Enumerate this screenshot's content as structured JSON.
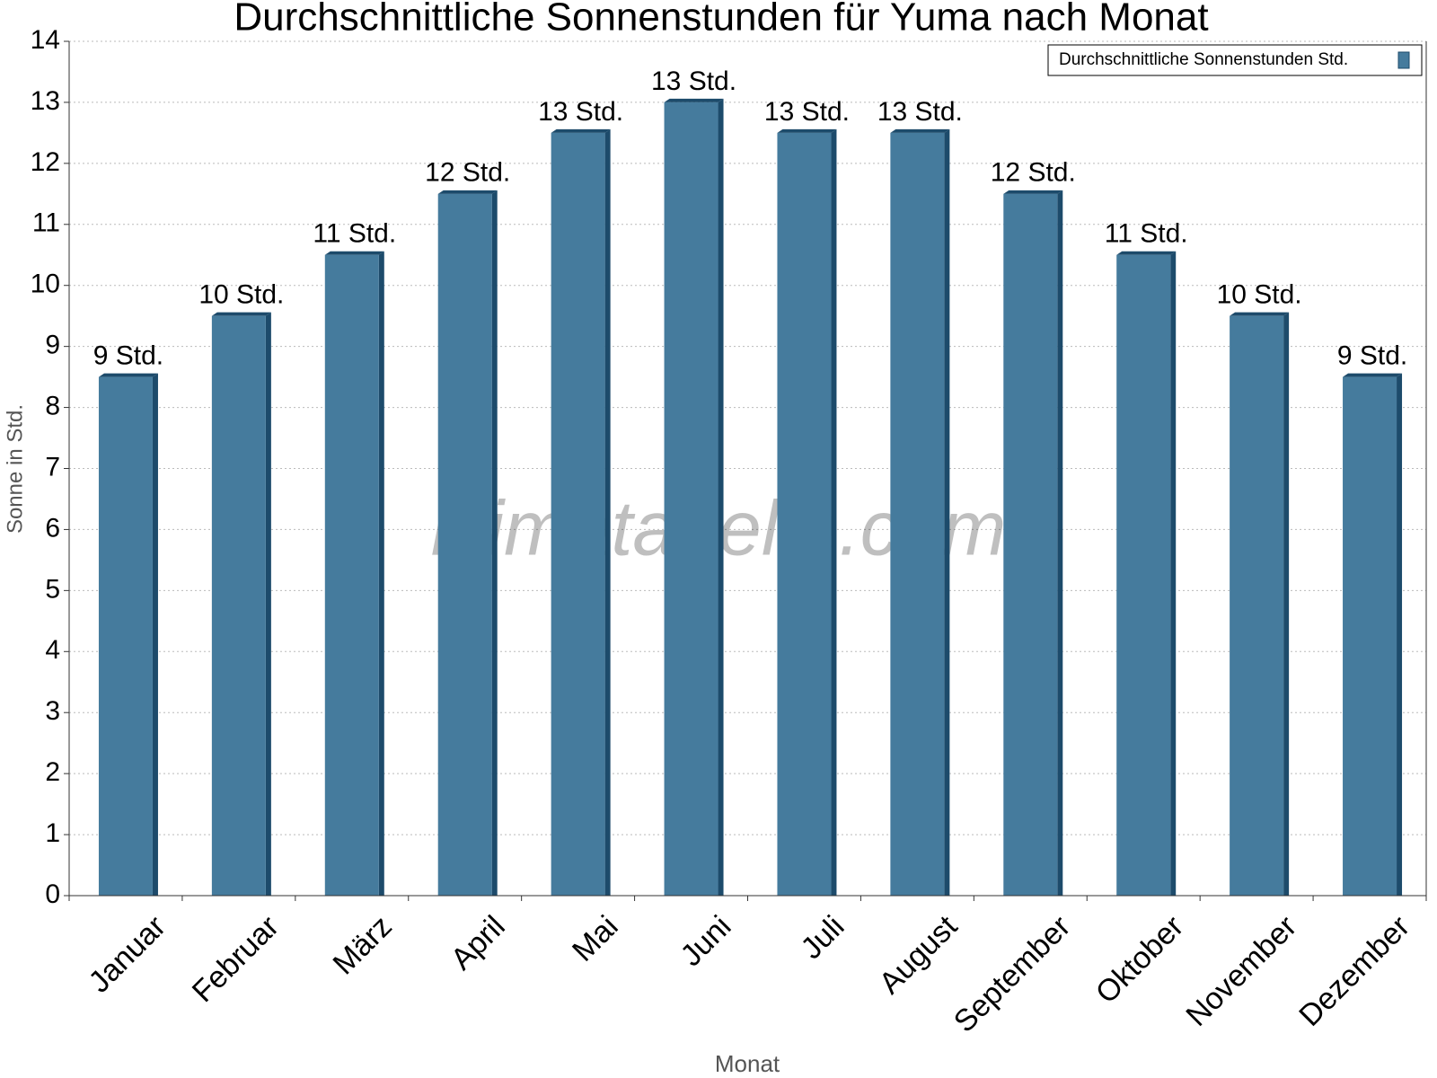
{
  "chart_data": {
    "type": "bar",
    "title": "Durchschnittliche Sonnenstunden für Yuma nach Monat",
    "x_label": "Monat",
    "y_label": "Sonne in Std.",
    "watermark": "klimatabelle.com",
    "categories": [
      "Januar",
      "Februar",
      "März",
      "April",
      "Mai",
      "Juni",
      "Juli",
      "August",
      "September",
      "Oktober",
      "November",
      "Dezember"
    ],
    "series": [
      {
        "name": "Durchschnittliche Sonnenstunden Std.",
        "color": "#457b9d",
        "values": [
          8.5,
          9.5,
          10.5,
          11.5,
          12.5,
          13,
          12.5,
          12.5,
          11.5,
          10.5,
          9.5,
          8.5
        ],
        "value_labels": [
          "9 Std.",
          "10 Std.",
          "11 Std.",
          "12 Std.",
          "13 Std.",
          "13 Std.",
          "13 Std.",
          "13 Std.",
          "12 Std.",
          "11 Std.",
          "10 Std.",
          "9 Std."
        ]
      }
    ],
    "ylim": [
      0,
      14
    ],
    "yticks": [
      0,
      1,
      2,
      3,
      4,
      5,
      6,
      7,
      8,
      9,
      10,
      11,
      12,
      13,
      14
    ],
    "grid": true,
    "legend": "top-right"
  }
}
